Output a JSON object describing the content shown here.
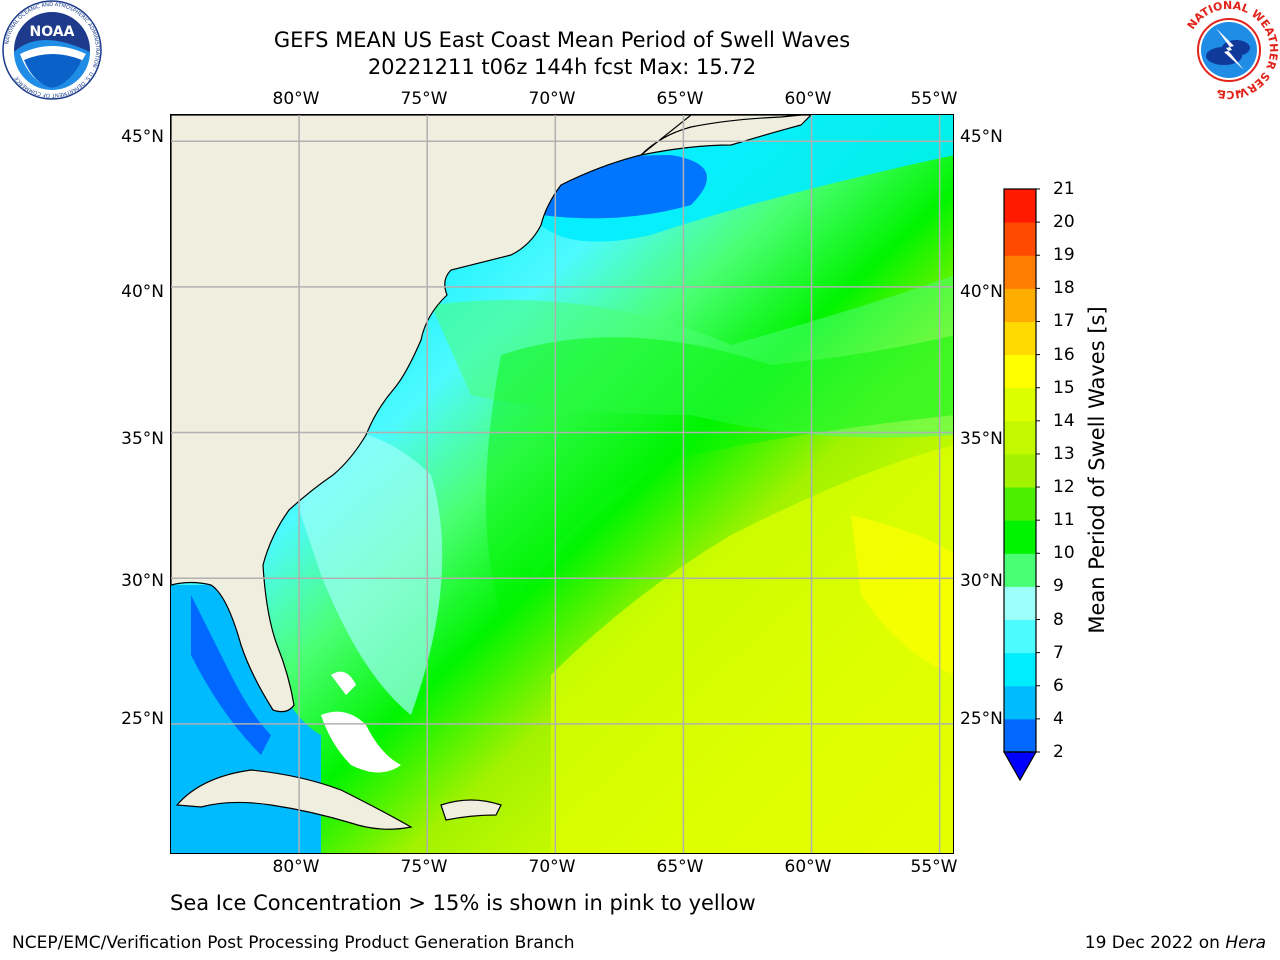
{
  "header": {
    "title_line1": "GEFS MEAN US East Coast Mean Period of Swell Waves",
    "title_line2": "20221211 t06z 144h fcst   Max: 15.72"
  },
  "map": {
    "lon_ticks": [
      "80°W",
      "75°W",
      "70°W",
      "65°W",
      "60°W",
      "55°W"
    ],
    "lon_values": [
      -80,
      -75,
      -70,
      -65,
      -60,
      -55
    ],
    "lat_ticks": [
      "45°N",
      "40°N",
      "35°N",
      "30°N",
      "25°N"
    ],
    "lat_values": [
      45,
      40,
      35,
      30,
      25
    ],
    "lon_range": [
      -85,
      -54.4
    ],
    "lat_range": [
      20.5,
      45.9
    ],
    "land_color": "#efeedf",
    "grid_color": "#b0b0b0"
  },
  "colorbar": {
    "title": "Mean Period of Swell Waves [s]",
    "labels": [
      "2",
      "4",
      "6",
      "7",
      "8",
      "9",
      "10",
      "11",
      "12",
      "13",
      "14",
      "15",
      "16",
      "17",
      "18",
      "19",
      "20",
      "21"
    ],
    "colors": [
      "#0068ff",
      "#00bcff",
      "#00edff",
      "#4dfafe",
      "#9dfff9",
      "#4bff75",
      "#00f400",
      "#4ded00",
      "#a3f200",
      "#c2f900",
      "#dcff00",
      "#ffff00",
      "#ffd900",
      "#ffac00",
      "#ff7d00",
      "#ff4a00",
      "#ff1a00"
    ],
    "under_color": "#0000ff"
  },
  "footnote": "Sea Ice Concentration > 15% is shown in pink to yellow",
  "footer": {
    "left": "NCEP/EMC/Verification Post Processing Product Generation Branch",
    "right_date": "19 Dec 2022 on ",
    "right_host": "Hera"
  },
  "logos": {
    "noaa_text": "NOAA",
    "noaa_ring_text": "NATIONAL OCEANIC AND ATMOSPHERIC ADMINISTRATION · U.S. DEPARTMENT OF COMMERCE",
    "nws_ring_text": "NATIONAL WEATHER SERVICE"
  }
}
